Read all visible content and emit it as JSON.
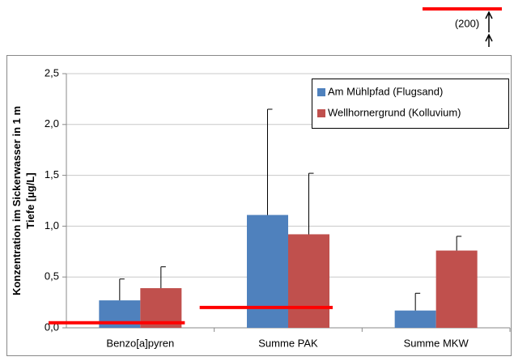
{
  "chart_data": {
    "type": "bar",
    "y_label": [
      "Konzentration im Sickerwasser in 1 m",
      "Tiefe [µg/L]"
    ],
    "categories": [
      "Benzo[a]pyren",
      "Summe PAK",
      "Summe MKW"
    ],
    "series": [
      {
        "name": "Am Mühlpfad (Flugsand)",
        "color": "#4f81bd",
        "values": [
          0.27,
          1.11,
          0.17
        ],
        "errors": [
          0.21,
          1.04,
          0.17
        ]
      },
      {
        "name": "Wellhornergrund (Kolluvium)",
        "color": "#c0504d",
        "values": [
          0.39,
          0.92,
          0.76
        ],
        "errors": [
          0.21,
          0.6,
          0.14
        ]
      }
    ],
    "thresholds": {
      "color": "#ff0000",
      "values": [
        0.05,
        0.2,
        200
      ],
      "value_labels": [
        null,
        null,
        "(200)"
      ]
    },
    "ylim": [
      0,
      2.5
    ],
    "yticks": [
      {
        "value": 0,
        "label": "0,0"
      },
      {
        "value": 0.5,
        "label": "0,5"
      },
      {
        "value": 1,
        "label": "1,0"
      },
      {
        "value": 1.5,
        "label": "1,5"
      },
      {
        "value": 2,
        "label": "2,0"
      },
      {
        "value": 2.5,
        "label": "2,5"
      }
    ],
    "grid": true,
    "legend": "upper right"
  }
}
